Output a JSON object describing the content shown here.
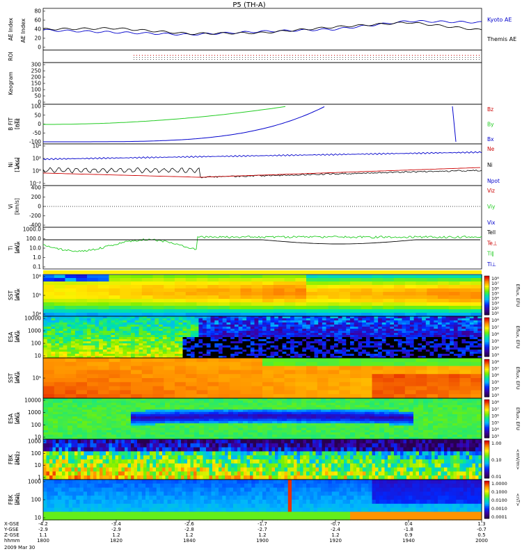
{
  "title": "P5 (TH-A)",
  "date_label": "2009 Mar 30",
  "x_axis": {
    "time_ticks": [
      "1800",
      "1820",
      "1840",
      "1900",
      "1920",
      "1940",
      "2000"
    ],
    "row_labels": [
      "X-GSE",
      "Y-GSE",
      "Z-GSE",
      "hhmm"
    ],
    "x_gse": [
      "-4.2",
      "-3.4",
      "-2.6",
      "-1.7",
      "-0.7",
      "0.4",
      "1.3"
    ],
    "y_gse": [
      "-2.9",
      "-2.9",
      "-2.8",
      "-2.7",
      "-2.4",
      "-1.8",
      "-0.7"
    ],
    "z_gse": [
      "1.1",
      "1.2",
      "1.2",
      "1.2",
      "1.2",
      "0.9",
      "0.5"
    ]
  },
  "colors": {
    "black": "#000000",
    "blue": "#0000cc",
    "red": "#cc0000",
    "green": "#22cc22"
  },
  "panels": {
    "ae": {
      "ylabel": "AE Index",
      "ticks": [
        "80",
        "60",
        "40",
        "20",
        "0"
      ],
      "legend": [
        "Kyoto AE",
        "Themis AE"
      ]
    },
    "roi": {
      "ylabel": "ROI"
    },
    "keo": {
      "ylabel": "Keogram",
      "ticks": [
        "300",
        "250",
        "200",
        "150",
        "100",
        "50",
        "0"
      ]
    },
    "bfit": {
      "ylabel": "B FIT\n[nT]",
      "ylabel2": "GSE",
      "ticks": [
        "100",
        "50",
        "0",
        "-50",
        "-100"
      ],
      "legend": [
        "Bz",
        "By",
        "Bx"
      ]
    },
    "ni": {
      "ylabel": "Ni\n[1/cc]",
      "ylabel2": "eflux",
      "ticks": [
        "10⁴",
        "10²",
        "10⁰",
        "10⁻²"
      ],
      "legend": [
        "Ne",
        "Ni",
        "Npot"
      ]
    },
    "vi": {
      "ylabel": "Vi\n[km/s]",
      "ticks": [
        "400",
        "200",
        "0",
        "-200",
        "-400"
      ],
      "legend": [
        "Viz",
        "Viy",
        "Vix"
      ]
    },
    "ti": {
      "ylabel": "Ti\n[eV]",
      "ylabel2": "eflux",
      "ticks": [
        "1000.0",
        "100.0",
        "10.0",
        "1.0",
        "0.1"
      ],
      "legend": [
        "Tell",
        "Te⊥",
        "Ti∥",
        "Ti⊥"
      ]
    },
    "sst_e": {
      "ylabel": "SST\n[eV]",
      "ylabel2": "eflux",
      "ticks": [
        "10⁶",
        "10⁵",
        "10⁴"
      ],
      "cbar_label": "Eflux, EFU",
      "cbar_ticks": [
        "10⁸",
        "10⁷",
        "10⁶",
        "10⁵",
        "10⁴",
        "10³",
        "10²",
        "10¹"
      ]
    },
    "esa_e": {
      "ylabel": "ESA\n[eV]",
      "ylabel2": "eflux",
      "ticks": [
        "10000",
        "1000",
        "100",
        "10"
      ],
      "cbar_label": "Eflux, EFU",
      "cbar_ticks": [
        "10⁸",
        "10⁷",
        "10⁶",
        "10⁵",
        "10⁴",
        "10³"
      ]
    },
    "sst_i": {
      "ylabel": "SST\n[eV]",
      "ylabel2": "eflux",
      "ticks": [
        "10⁵"
      ],
      "cbar_label": "Eflux, EFU",
      "cbar_ticks": [
        "10⁸",
        "10⁷",
        "10⁶",
        "10⁵",
        "10⁴",
        "10³"
      ]
    },
    "esa_i": {
      "ylabel": "ESA\n[eV]",
      "ylabel2": "eflux",
      "ticks": [
        "10000",
        "1000",
        "100",
        "10"
      ],
      "cbar_label": "Eflux, EFU",
      "cbar_ticks": [
        "10⁸",
        "10⁷",
        "10⁶",
        "10⁵",
        "10⁴",
        "10³"
      ]
    },
    "fbk_e": {
      "ylabel": "FBK\n[Hz]",
      "ylabel2": "edc12",
      "ticks": [
        "1000",
        "100",
        "10",
        "1"
      ],
      "cbar_label": "<mV/m>",
      "cbar_ticks": [
        "1.00",
        "0.10",
        "0.01"
      ]
    },
    "fbk_b": {
      "ylabel": "FBK\n[Hz]",
      "ylabel2": "scm1",
      "ticks": [
        "1000",
        "100",
        "10"
      ],
      "cbar_label": "<nT>",
      "cbar_ticks": [
        "1.0000",
        "0.1000",
        "0.0100",
        "0.0010",
        "0.0001"
      ]
    }
  },
  "chart_data": {
    "type": "line",
    "title": "P5 (TH-A)",
    "x": [
      "1800",
      "1820",
      "1840",
      "1900",
      "1920",
      "1940",
      "2000"
    ],
    "series": [
      {
        "name": "Kyoto AE",
        "values": [
          38,
          33,
          28,
          35,
          40,
          58,
          55
        ]
      },
      {
        "name": "Themis AE",
        "values": [
          40,
          42,
          30,
          32,
          45,
          55,
          38
        ]
      }
    ],
    "ylabel": "AE Index",
    "ylim": [
      0,
      80
    ]
  }
}
